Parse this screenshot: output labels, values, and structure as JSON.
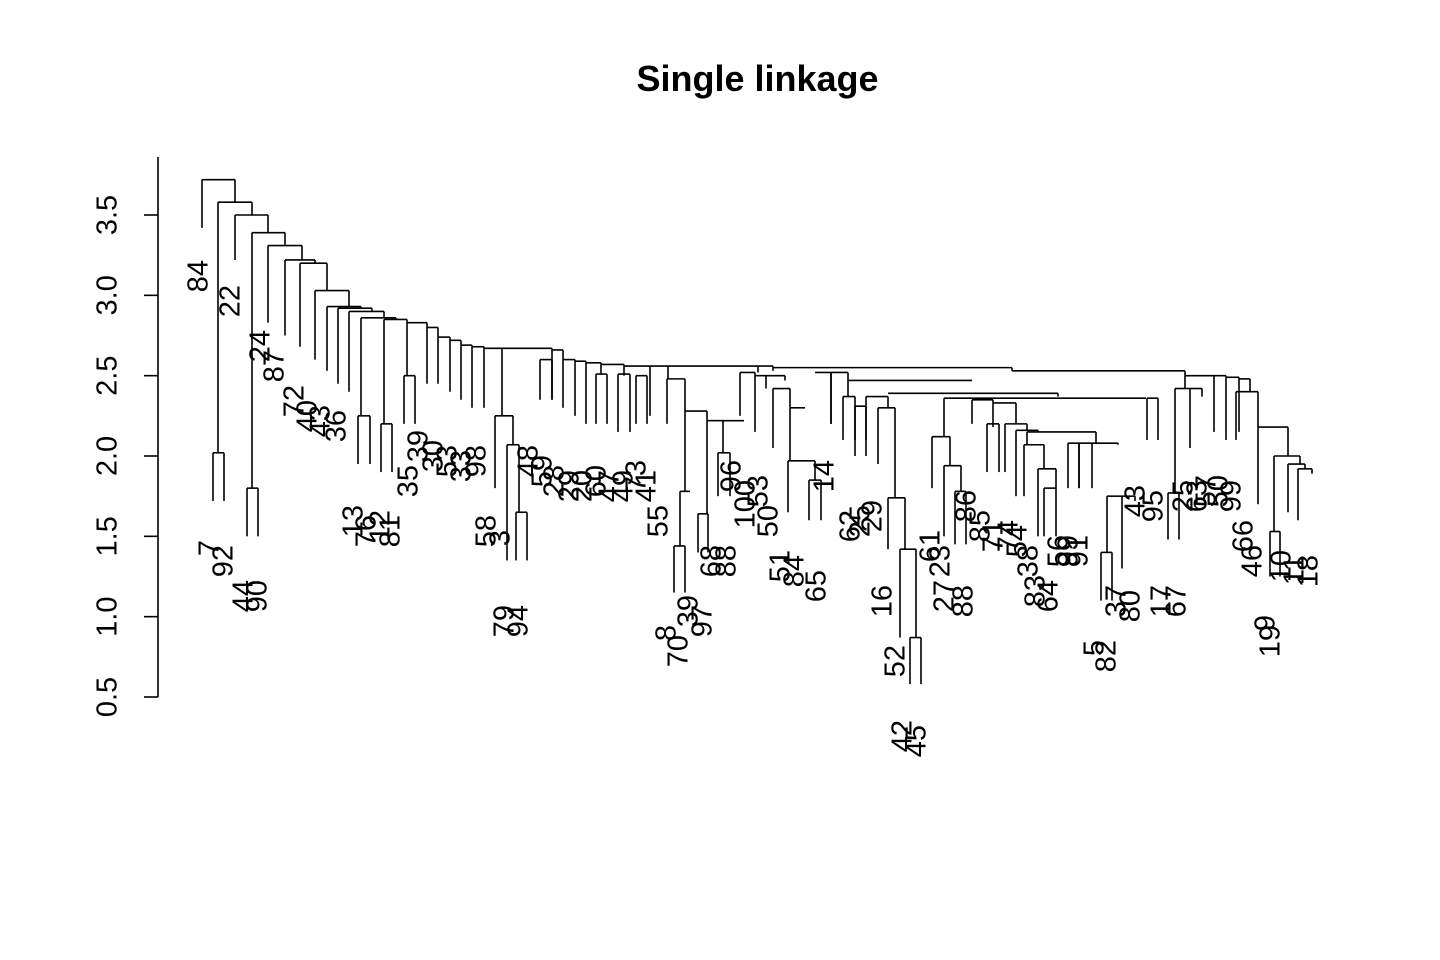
{
  "chart_data": {
    "type": "dendrogram",
    "title": "Single linkage",
    "xlabel": "",
    "ylabel": "",
    "ylim": [
      0.5,
      3.75
    ],
    "yticks": [
      "0.5",
      "1.0",
      "1.5",
      "2.0",
      "2.5",
      "3.0",
      "3.5"
    ],
    "yticks_values": [
      0.5,
      1.0,
      1.5,
      2.0,
      2.5,
      3.0,
      3.5
    ],
    "leaves": [
      "84",
      "7",
      "92",
      "22",
      "44",
      "90",
      "24",
      "87",
      "72",
      "40",
      "43",
      "36",
      "13",
      "76",
      "12",
      "81",
      "35",
      "39",
      "30",
      "53",
      "33",
      "98",
      "58",
      "79",
      "3",
      "94",
      "48",
      "59",
      "28",
      "29",
      "20",
      "60",
      "47",
      "49",
      "73",
      "41",
      "55",
      "70",
      "8",
      "97",
      "39",
      "68",
      "88",
      "96",
      "100",
      "53",
      "50",
      "51",
      "84",
      "65",
      "14",
      "62",
      "25",
      "29",
      "16",
      "52",
      "42",
      "45",
      "61",
      "27",
      "23",
      "88",
      "86",
      "85",
      "71",
      "74",
      "54",
      "38",
      "83",
      "64",
      "56",
      "99",
      "91",
      "5",
      "82",
      "37",
      "80",
      "43",
      "95",
      "17",
      "67",
      "25",
      "63",
      "57",
      "50",
      "99",
      "66",
      "46",
      "19",
      "9",
      "10",
      "11",
      "18"
    ],
    "merges": [
      {
        "a": "84",
        "b": "rest",
        "height": 3.72
      },
      {
        "a": "22",
        "b": "rest",
        "height": 3.58
      },
      {
        "a": "7",
        "b": "92",
        "height": 2.02
      },
      {
        "a": "44",
        "b": "90",
        "height": 1.8
      },
      {
        "a": "24",
        "b": "rest",
        "height": 3.38
      },
      {
        "a": "42",
        "b": "45",
        "height": 0.87
      },
      {
        "a": "52",
        "b": "cluster",
        "height": 1.41
      },
      {
        "a": "16",
        "b": "cluster",
        "height": 1.74
      },
      {
        "a": "5",
        "b": "82",
        "height": 1.41
      },
      {
        "a": "8",
        "b": "70",
        "height": 1.44
      },
      {
        "a": "19",
        "b": "9",
        "height": 1.53
      },
      {
        "a": "79",
        "b": "94",
        "height": 1.65
      },
      {
        "a": "main",
        "b": "right",
        "height": 2.53
      }
    ]
  }
}
